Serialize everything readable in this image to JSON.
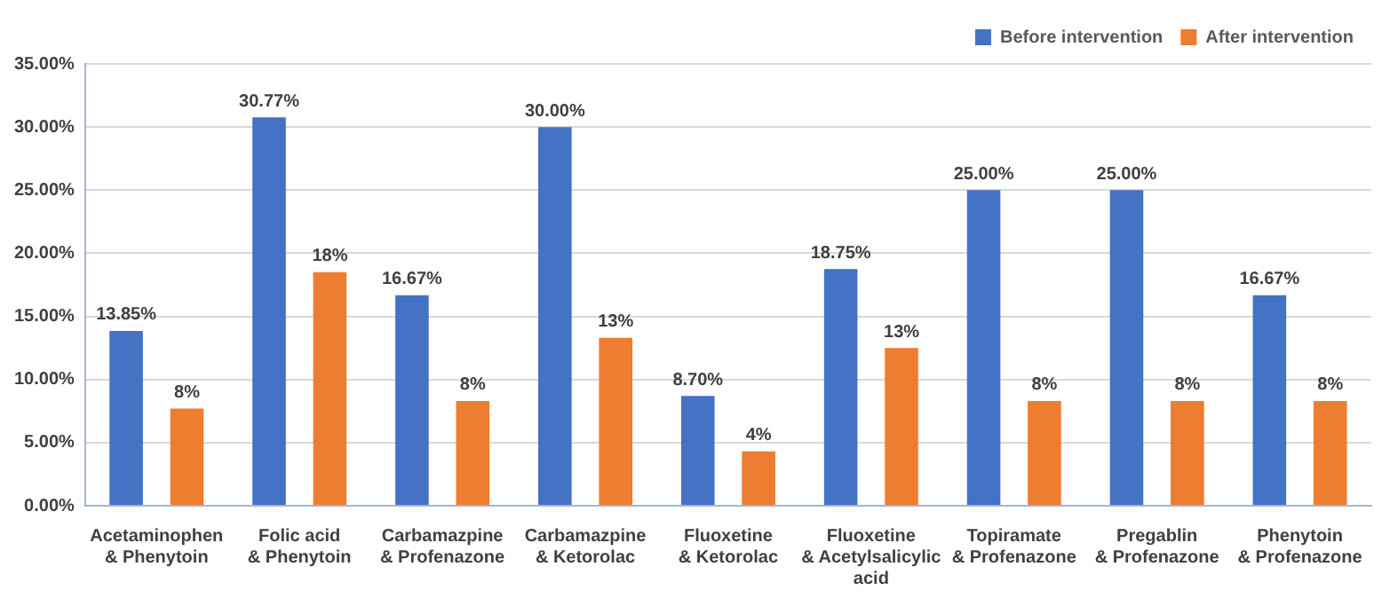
{
  "chart_data": {
    "type": "bar",
    "categories": [
      "Acetaminophen\n& Phenytoin",
      "Folic acid\n& Phenytoin",
      "Carbamazpine\n& Profenazone",
      "Carbamazpine\n& Ketorolac",
      "Fluoxetine\n& Ketorolac",
      "Fluoxetine\n& Acetylsalicylic\nacid",
      "Topiramate\n& Profenazone",
      "Pregablin\n& Profenazone",
      "Phenytoin\n& Profenazone"
    ],
    "series": [
      {
        "name": "Before intervention",
        "color": "#4472c4",
        "values": [
          13.85,
          30.77,
          16.67,
          30,
          8.7,
          18.75,
          25,
          25,
          16.67
        ],
        "value_labels": [
          "13.85%",
          "30.77%",
          "16.67%",
          "30.00%",
          "8.70%",
          "18.75%",
          "25.00%",
          "25.00%",
          "16.67%"
        ]
      },
      {
        "name": "After intervention",
        "color": "#ed7d31",
        "values": [
          7.7,
          18.5,
          8.3,
          13.3,
          4.3,
          12.5,
          8.3,
          8.3,
          8.3
        ],
        "value_labels": [
          "8%",
          "18%",
          "8%",
          "13%",
          "4%",
          "13%",
          "8%",
          "8%",
          "8%"
        ]
      }
    ],
    "ylim": [
      0,
      35
    ],
    "yticks": [
      {
        "value": 0,
        "label": "0.00%"
      },
      {
        "value": 5,
        "label": "5.00%"
      },
      {
        "value": 10,
        "label": "10.00%"
      },
      {
        "value": 15,
        "label": "15.00%"
      },
      {
        "value": 20,
        "label": "20.00%"
      },
      {
        "value": 25,
        "label": "25.00%"
      },
      {
        "value": 30,
        "label": "30.00%"
      },
      {
        "value": 35,
        "label": "35.00%"
      }
    ],
    "grid": "y",
    "legend": "top right"
  }
}
